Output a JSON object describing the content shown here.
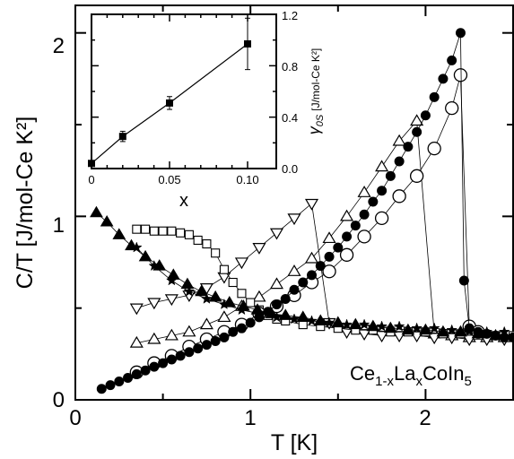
{
  "chart_data": [
    {
      "type": "scatter",
      "xlabel": "T [K]",
      "ylabel": "C/T [J/mol-Ce K²]",
      "xlim": [
        0,
        2.5
      ],
      "ylim": [
        0,
        2.15
      ],
      "x_ticks": [
        "0",
        "1",
        "2"
      ],
      "y_ticks": [
        "0",
        "1",
        "2"
      ],
      "annotation": "Ce1-xLaxCoIn5",
      "annotation_parts": {
        "a": "Ce",
        "b": "1-x",
        "c": "La",
        "d": "x",
        "e": "CoIn",
        "f": "5"
      },
      "grid": false,
      "series": [
        {
          "marker": "filled-circle",
          "x": [
            0.15,
            0.2,
            0.25,
            0.3,
            0.35,
            0.4,
            0.45,
            0.5,
            0.55,
            0.6,
            0.65,
            0.7,
            0.75,
            0.8,
            0.85,
            0.9,
            0.95,
            1.0,
            1.05,
            1.1,
            1.15,
            1.2,
            1.25,
            1.3,
            1.35,
            1.4,
            1.45,
            1.5,
            1.55,
            1.6,
            1.65,
            1.7,
            1.75,
            1.8,
            1.85,
            1.9,
            1.95,
            2.0,
            2.05,
            2.1,
            2.15,
            2.2,
            2.22,
            2.25,
            2.3,
            2.35,
            2.4,
            2.45,
            2.5
          ],
          "y": [
            0.06,
            0.08,
            0.1,
            0.12,
            0.14,
            0.16,
            0.18,
            0.2,
            0.22,
            0.24,
            0.26,
            0.28,
            0.3,
            0.32,
            0.34,
            0.37,
            0.39,
            0.42,
            0.45,
            0.48,
            0.52,
            0.55,
            0.6,
            0.64,
            0.68,
            0.73,
            0.78,
            0.83,
            0.89,
            0.95,
            1.01,
            1.08,
            1.14,
            1.22,
            1.3,
            1.38,
            1.46,
            1.55,
            1.65,
            1.75,
            1.85,
            2.0,
            0.65,
            0.39,
            0.37,
            0.36,
            0.35,
            0.34,
            0.34
          ]
        },
        {
          "marker": "open-circle",
          "x": [
            0.35,
            0.45,
            0.55,
            0.65,
            0.75,
            0.85,
            0.95,
            1.05,
            1.15,
            1.25,
            1.35,
            1.45,
            1.55,
            1.65,
            1.75,
            1.85,
            1.95,
            2.05,
            2.15,
            2.2,
            2.25,
            2.3
          ],
          "y": [
            0.15,
            0.2,
            0.24,
            0.29,
            0.33,
            0.37,
            0.41,
            0.47,
            0.51,
            0.57,
            0.64,
            0.7,
            0.79,
            0.89,
            0.99,
            1.11,
            1.22,
            1.37,
            1.59,
            1.77,
            0.4,
            0.37
          ]
        },
        {
          "marker": "open-triangle-up",
          "x": [
            0.35,
            0.45,
            0.55,
            0.65,
            0.75,
            0.85,
            0.95,
            1.05,
            1.15,
            1.25,
            1.35,
            1.45,
            1.55,
            1.65,
            1.75,
            1.85,
            1.95,
            2.05,
            2.15,
            2.25,
            2.35,
            2.45
          ],
          "y": [
            0.31,
            0.33,
            0.35,
            0.37,
            0.41,
            0.45,
            0.51,
            0.56,
            0.63,
            0.7,
            0.77,
            0.88,
            1.0,
            1.13,
            1.27,
            1.41,
            1.52,
            0.36,
            0.35,
            0.34,
            0.34,
            0.34
          ]
        },
        {
          "marker": "open-triangle-down",
          "x": [
            0.35,
            0.45,
            0.55,
            0.65,
            0.75,
            0.85,
            0.95,
            1.05,
            1.15,
            1.25,
            1.35,
            1.45,
            1.55,
            1.65,
            1.75,
            1.85,
            1.95,
            2.05,
            2.15,
            2.25,
            2.35,
            2.45
          ],
          "y": [
            0.5,
            0.53,
            0.55,
            0.57,
            0.61,
            0.67,
            0.75,
            0.83,
            0.91,
            0.99,
            1.07,
            0.42,
            0.37,
            0.36,
            0.35,
            0.35,
            0.35,
            0.34,
            0.34,
            0.33,
            0.33,
            0.33
          ]
        },
        {
          "marker": "open-square",
          "x": [
            0.35,
            0.4,
            0.45,
            0.5,
            0.55,
            0.6,
            0.65,
            0.7,
            0.75,
            0.8,
            0.85,
            0.9,
            0.95,
            1.0,
            1.05,
            1.1,
            1.15,
            1.2,
            1.3,
            1.4,
            1.5,
            1.6,
            1.7,
            1.8,
            1.9,
            2.0,
            2.1,
            2.2,
            2.3,
            2.4,
            2.5
          ],
          "y": [
            0.93,
            0.93,
            0.92,
            0.92,
            0.92,
            0.91,
            0.9,
            0.87,
            0.85,
            0.8,
            0.71,
            0.64,
            0.58,
            0.53,
            0.49,
            0.46,
            0.44,
            0.43,
            0.41,
            0.4,
            0.39,
            0.38,
            0.38,
            0.37,
            0.37,
            0.37,
            0.36,
            0.36,
            0.36,
            0.35,
            0.35
          ]
        },
        {
          "marker": "star",
          "x": [
            0.35,
            0.45,
            0.55,
            0.65,
            0.75,
            0.85,
            0.95,
            1.05,
            1.15,
            1.25,
            1.35,
            1.45,
            1.55,
            1.65,
            1.75,
            1.85,
            1.95,
            2.05,
            2.15,
            2.25,
            2.35,
            2.45
          ],
          "y": [
            0.83,
            0.73,
            0.65,
            0.59,
            0.55,
            0.52,
            0.49,
            0.47,
            0.45,
            0.44,
            0.43,
            0.42,
            0.41,
            0.41,
            0.4,
            0.4,
            0.39,
            0.39,
            0.38,
            0.38,
            0.37,
            0.37
          ]
        },
        {
          "marker": "filled-triangle-up",
          "x": [
            0.12,
            0.18,
            0.25,
            0.32,
            0.4,
            0.48,
            0.56,
            0.64,
            0.72,
            0.8,
            0.88,
            0.96,
            1.04,
            1.12,
            1.2,
            1.3,
            1.4,
            1.5,
            1.6,
            1.7,
            1.8,
            1.9,
            2.0,
            2.1,
            2.2,
            2.3,
            2.4
          ],
          "y": [
            1.02,
            0.97,
            0.9,
            0.84,
            0.78,
            0.73,
            0.68,
            0.63,
            0.59,
            0.56,
            0.53,
            0.51,
            0.49,
            0.47,
            0.46,
            0.45,
            0.43,
            0.42,
            0.41,
            0.4,
            0.39,
            0.38,
            0.38,
            0.37,
            0.37,
            0.36,
            0.35
          ]
        }
      ]
    },
    {
      "type": "line",
      "xlabel": "x",
      "ylabel": "γ0S [J/mol-Ce K²]",
      "ylabel_parts": {
        "symbol": "γ",
        "sub": "0S",
        "units": "[J/mol-Ce K²]"
      },
      "xlim": [
        0,
        0.1
      ],
      "ylim": [
        0,
        1.2
      ],
      "x_ticks": [
        "0",
        "0.05",
        "0.10"
      ],
      "y_ticks": [
        "0.0",
        "0.4",
        "0.8",
        "1.2"
      ],
      "marker": "filled-square",
      "x": [
        0,
        0.02,
        0.05,
        0.1
      ],
      "y": [
        0.04,
        0.25,
        0.51,
        0.97
      ],
      "y_error": [
        0.02,
        0.04,
        0.05,
        0.2
      ]
    }
  ]
}
